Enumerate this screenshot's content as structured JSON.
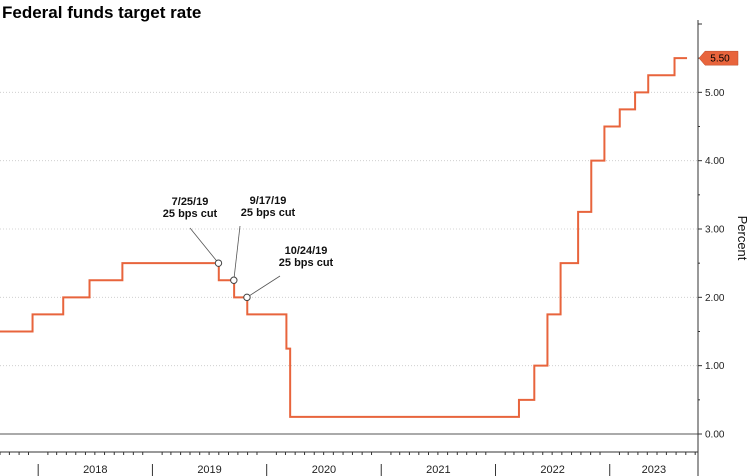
{
  "chart_data": {
    "type": "line",
    "title": "Federal funds target rate",
    "ylabel": "Percent",
    "xlabel": "",
    "ylim": [
      0,
      6
    ],
    "yticks": [
      "0.00",
      "1.00",
      "2.00",
      "3.00",
      "4.00",
      "5.00"
    ],
    "x_year_labels": [
      "2018",
      "2019",
      "2020",
      "2021",
      "2022",
      "2023"
    ],
    "grid": true,
    "line_color": "#e8643c",
    "last_value_label": "5.50",
    "series": [
      {
        "points": [
          [
            "2017-09-01",
            1.5
          ],
          [
            "2017-12-14",
            1.5
          ],
          [
            "2017-12-14",
            1.75
          ],
          [
            "2018-03-22",
            1.75
          ],
          [
            "2018-03-22",
            2.0
          ],
          [
            "2018-06-14",
            2.0
          ],
          [
            "2018-06-14",
            2.25
          ],
          [
            "2018-09-27",
            2.25
          ],
          [
            "2018-09-27",
            2.5
          ],
          [
            "2019-08-01",
            2.5
          ],
          [
            "2019-08-01",
            2.25
          ],
          [
            "2019-09-19",
            2.25
          ],
          [
            "2019-09-19",
            2.0
          ],
          [
            "2019-10-31",
            2.0
          ],
          [
            "2019-10-31",
            1.75
          ],
          [
            "2020-03-04",
            1.75
          ],
          [
            "2020-03-04",
            1.25
          ],
          [
            "2020-03-16",
            1.25
          ],
          [
            "2020-03-16",
            0.25
          ],
          [
            "2022-03-17",
            0.25
          ],
          [
            "2022-03-17",
            0.5
          ],
          [
            "2022-05-05",
            0.5
          ],
          [
            "2022-05-05",
            1.0
          ],
          [
            "2022-06-16",
            1.0
          ],
          [
            "2022-06-16",
            1.75
          ],
          [
            "2022-07-28",
            1.75
          ],
          [
            "2022-07-28",
            2.5
          ],
          [
            "2022-09-22",
            2.5
          ],
          [
            "2022-09-22",
            3.25
          ],
          [
            "2022-11-03",
            3.25
          ],
          [
            "2022-11-03",
            4.0
          ],
          [
            "2022-12-15",
            4.0
          ],
          [
            "2022-12-15",
            4.5
          ],
          [
            "2023-02-02",
            4.5
          ],
          [
            "2023-02-02",
            4.75
          ],
          [
            "2023-03-23",
            4.75
          ],
          [
            "2023-03-23",
            5.0
          ],
          [
            "2023-05-04",
            5.0
          ],
          [
            "2023-05-04",
            5.25
          ],
          [
            "2023-07-27",
            5.25
          ],
          [
            "2023-07-27",
            5.5
          ],
          [
            "2023-09-05",
            5.5
          ]
        ]
      }
    ],
    "annotations": [
      {
        "date": "2019-07-31",
        "y": 2.5,
        "lines": [
          "7/25/19",
          "25 bps cut"
        ]
      },
      {
        "date": "2019-09-18",
        "y": 2.25,
        "lines": [
          "9/17/19",
          "25 bps cut"
        ]
      },
      {
        "date": "2019-10-30",
        "y": 2.0,
        "lines": [
          "10/24/19",
          "25 bps cut"
        ]
      }
    ]
  }
}
